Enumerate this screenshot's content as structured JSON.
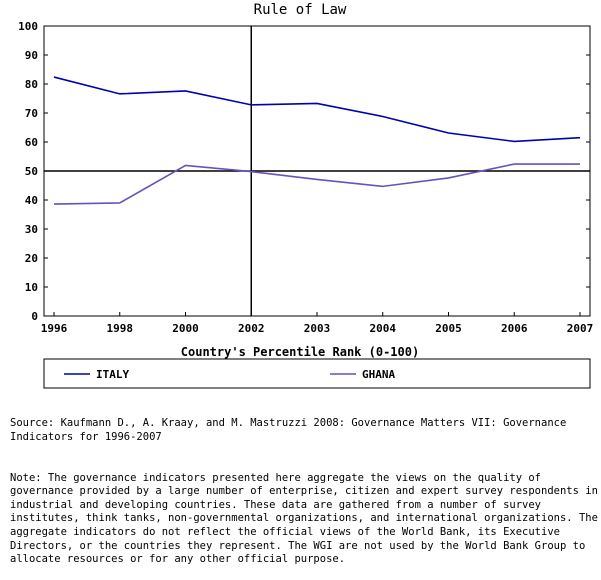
{
  "chart_data": {
    "type": "line",
    "title": "Rule of Law",
    "xlabel": "Country's Percentile Rank (0-100)",
    "ylabel": "",
    "x": [
      1996,
      1998,
      2000,
      2002,
      2003,
      2004,
      2005,
      2006,
      2007
    ],
    "x_tick_labels": [
      "1996",
      "1998",
      "2000",
      "2002",
      "2003",
      "2004",
      "2005",
      "2006",
      "2007"
    ],
    "ylim": [
      0,
      100
    ],
    "y_ticks": [
      0,
      10,
      20,
      30,
      40,
      50,
      60,
      70,
      80,
      90,
      100
    ],
    "reference_lines": {
      "x": 2002,
      "y": 50
    },
    "grid": false,
    "legend_position": "bottom",
    "series": [
      {
        "name": "ITALY",
        "color": "#0000b3",
        "values": [
          82.4,
          76.6,
          77.6,
          72.8,
          73.3,
          68.8,
          63.1,
          60.2,
          61.5
        ]
      },
      {
        "name": "GHANA",
        "color": "#6a4fc0",
        "values": [
          38.6,
          39.0,
          51.9,
          49.8,
          47.1,
          44.7,
          47.6,
          52.4,
          52.4
        ]
      }
    ]
  },
  "source_text": "Source: Kaufmann D., A. Kraay, and M. Mastruzzi 2008: Governance Matters VII: Governance Indicators for 1996-2007",
  "note_text": "Note: The governance indicators presented here aggregate the views on the quality of governance provided by a large number of enterprise, citizen and expert survey respondents in industrial and developing countries. These data are gathered from a number of survey institutes, think tanks, non-governmental organizations, and international organizations. The aggregate indicators do not reflect the official views of the World Bank, its Executive Directors, or the countries they represent. The WGI are not used by the World Bank Group to allocate resources or for any other official purpose."
}
